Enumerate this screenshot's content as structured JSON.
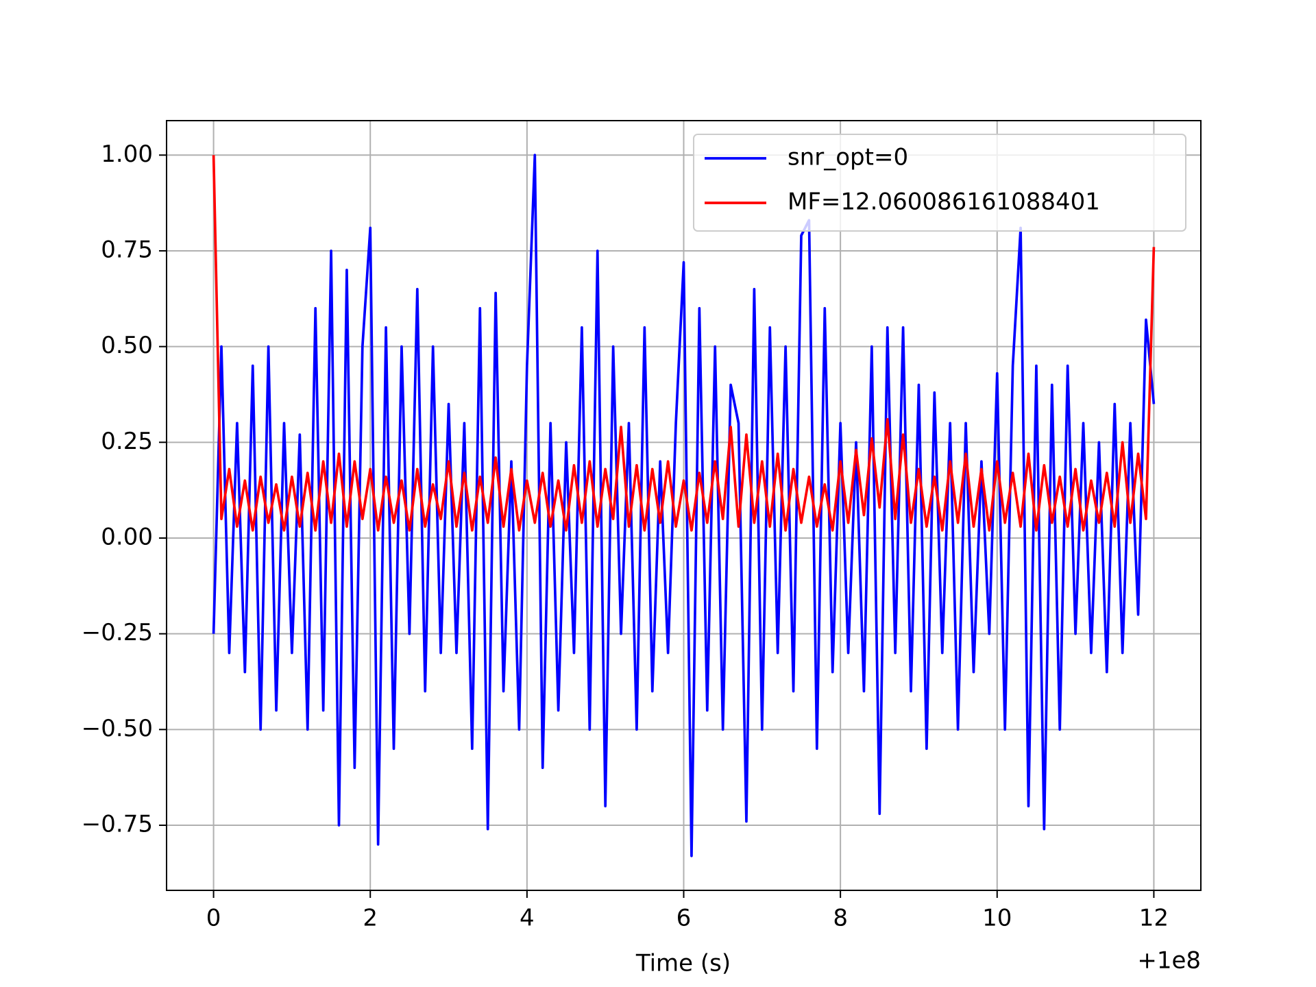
{
  "chart_data": {
    "type": "line",
    "xlabel": "Time (s)",
    "x_offset_label": "+1e8",
    "x": [
      0,
      0.1,
      0.2,
      0.3,
      0.4,
      0.5,
      0.6,
      0.7,
      0.8,
      0.9,
      1,
      1.1,
      1.2,
      1.3,
      1.4,
      1.5,
      1.6,
      1.7,
      1.8,
      1.9,
      2,
      2.1,
      2.2,
      2.3,
      2.4,
      2.5,
      2.6,
      2.7,
      2.8,
      2.9,
      3,
      3.1,
      3.2,
      3.3,
      3.4,
      3.5,
      3.6,
      3.7,
      3.8,
      3.9,
      4,
      4.1,
      4.2,
      4.3,
      4.4,
      4.5,
      4.6,
      4.7,
      4.8,
      4.9,
      5,
      5.1,
      5.2,
      5.3,
      5.4,
      5.5,
      5.6,
      5.7,
      5.8,
      5.9,
      6,
      6.1,
      6.2,
      6.3,
      6.4,
      6.5,
      6.6,
      6.7,
      6.8,
      6.9,
      7,
      7.1,
      7.2,
      7.3,
      7.4,
      7.5,
      7.6,
      7.7,
      7.8,
      7.9,
      8,
      8.1,
      8.2,
      8.3,
      8.4,
      8.5,
      8.6,
      8.7,
      8.8,
      8.9,
      9,
      9.1,
      9.2,
      9.3,
      9.4,
      9.5,
      9.6,
      9.7,
      9.8,
      9.9,
      10,
      10.1,
      10.2,
      10.3,
      10.4,
      10.5,
      10.6,
      10.7,
      10.8,
      10.9,
      11,
      11.1,
      11.2,
      11.3,
      11.4,
      11.5,
      11.6,
      11.7,
      11.8,
      11.9,
      12
    ],
    "series": [
      {
        "name": "snr_opt=0",
        "color": "#0000ff",
        "values": [
          -0.25,
          0.5,
          -0.3,
          0.3,
          -0.35,
          0.45,
          -0.5,
          0.5,
          -0.45,
          0.3,
          -0.3,
          0.27,
          -0.5,
          0.6,
          -0.45,
          0.75,
          -0.75,
          0.7,
          -0.6,
          0.5,
          0.81,
          -0.8,
          0.55,
          -0.55,
          0.5,
          -0.25,
          0.65,
          -0.4,
          0.5,
          -0.3,
          0.35,
          -0.3,
          0.3,
          -0.55,
          0.6,
          -0.76,
          0.64,
          -0.4,
          0.2,
          -0.5,
          0.45,
          1.0,
          -0.6,
          0.3,
          -0.45,
          0.25,
          -0.3,
          0.55,
          -0.5,
          0.75,
          -0.7,
          0.5,
          -0.25,
          0.3,
          -0.5,
          0.55,
          -0.4,
          0.2,
          -0.3,
          0.3,
          0.72,
          -0.83,
          0.6,
          -0.45,
          0.5,
          -0.5,
          0.4,
          0.3,
          -0.74,
          0.65,
          -0.5,
          0.55,
          -0.3,
          0.5,
          -0.4,
          0.79,
          0.83,
          -0.55,
          0.6,
          -0.35,
          0.3,
          -0.3,
          0.25,
          -0.4,
          0.5,
          -0.72,
          0.55,
          -0.3,
          0.55,
          -0.4,
          0.4,
          -0.55,
          0.38,
          -0.3,
          0.3,
          -0.5,
          0.3,
          -0.35,
          0.2,
          -0.25,
          0.43,
          -0.5,
          0.45,
          0.81,
          -0.7,
          0.45,
          -0.76,
          0.4,
          -0.5,
          0.45,
          -0.25,
          0.3,
          -0.3,
          0.25,
          -0.35,
          0.35,
          -0.3,
          0.3,
          -0.2,
          0.57,
          0.35
        ]
      },
      {
        "name": "MF=12.060086161088401",
        "color": "#ff0000",
        "values": [
          1.0,
          0.05,
          0.18,
          0.03,
          0.15,
          0.02,
          0.16,
          0.04,
          0.14,
          0.02,
          0.16,
          0.03,
          0.17,
          0.02,
          0.2,
          0.04,
          0.22,
          0.03,
          0.2,
          0.05,
          0.18,
          0.02,
          0.16,
          0.04,
          0.15,
          0.02,
          0.18,
          0.03,
          0.14,
          0.05,
          0.2,
          0.03,
          0.17,
          0.02,
          0.16,
          0.04,
          0.21,
          0.03,
          0.18,
          0.02,
          0.15,
          0.04,
          0.17,
          0.03,
          0.15,
          0.02,
          0.19,
          0.04,
          0.2,
          0.03,
          0.18,
          0.05,
          0.29,
          0.03,
          0.19,
          0.02,
          0.18,
          0.04,
          0.2,
          0.03,
          0.15,
          0.02,
          0.17,
          0.04,
          0.2,
          0.05,
          0.29,
          0.03,
          0.27,
          0.04,
          0.2,
          0.03,
          0.22,
          0.02,
          0.18,
          0.04,
          0.16,
          0.03,
          0.14,
          0.02,
          0.2,
          0.04,
          0.23,
          0.06,
          0.26,
          0.08,
          0.31,
          0.05,
          0.27,
          0.04,
          0.18,
          0.03,
          0.16,
          0.02,
          0.2,
          0.04,
          0.22,
          0.03,
          0.18,
          0.02,
          0.2,
          0.04,
          0.17,
          0.03,
          0.22,
          0.02,
          0.19,
          0.04,
          0.16,
          0.03,
          0.18,
          0.02,
          0.15,
          0.04,
          0.17,
          0.03,
          0.25,
          0.04,
          0.22,
          0.05,
          0.76
        ]
      }
    ],
    "xlim": [
      -0.6,
      12.6
    ],
    "xticks": [
      0,
      2,
      4,
      6,
      8,
      10,
      12
    ],
    "ylim": [
      -0.92,
      1.09
    ],
    "yticks": [
      {
        "value": -0.75,
        "label": "−0.75"
      },
      {
        "value": -0.5,
        "label": "−0.50"
      },
      {
        "value": -0.25,
        "label": "−0.25"
      },
      {
        "value": 0,
        "label": "0.00"
      },
      {
        "value": 0.25,
        "label": "0.25"
      },
      {
        "value": 0.5,
        "label": "0.50"
      },
      {
        "value": 0.75,
        "label": "0.75"
      },
      {
        "value": 1,
        "label": "1.00"
      }
    ],
    "grid": true,
    "legend": "upper right"
  }
}
